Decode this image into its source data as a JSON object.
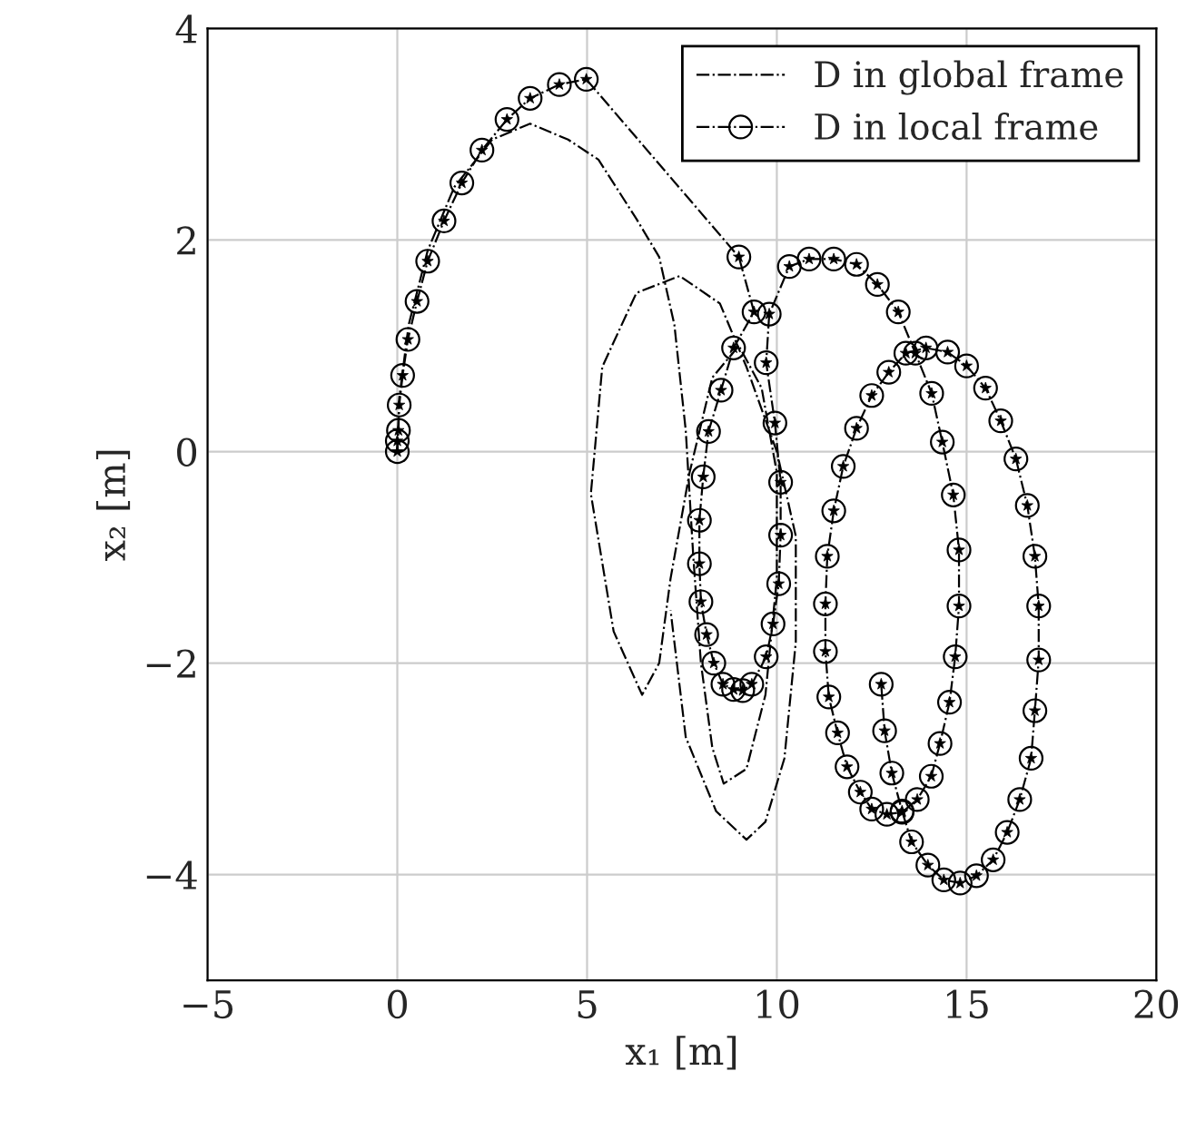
{
  "chart_data": {
    "type": "line",
    "xlabel": "x₁ [m]",
    "ylabel": "x₂ [m]",
    "xlim": [
      -5,
      20
    ],
    "ylim": [
      -5,
      4
    ],
    "xticks": [
      {
        "value": -5,
        "label": "−5"
      },
      0,
      5,
      10,
      15,
      20
    ],
    "yticks": [
      {
        "value": -4,
        "label": "−4"
      },
      {
        "value": -2,
        "label": "−2"
      },
      0,
      2,
      4
    ],
    "grid": true,
    "legend": "top right",
    "series": [
      {
        "name": "D in global frame",
        "color": "#000000",
        "line_style": "dashdot",
        "marker": "none",
        "x": [
          0,
          0.05,
          0.3,
          0.8,
          1.5,
          2.5,
          3.5,
          4.5,
          5.3,
          6.3,
          6.9,
          7.3,
          7.6,
          7.8,
          8.0,
          8.3,
          8.6,
          9.2,
          9.7,
          10.0,
          10.0,
          9.6,
          9.0,
          8.3,
          7.7,
          7.2,
          6.9,
          6.45,
          5.7,
          5.1,
          5.4,
          6.3,
          7.44,
          8.5,
          9.2,
          10.0,
          10.5,
          10.5,
          10.2,
          9.7,
          9.2,
          8.4,
          7.6,
          7.2
        ],
        "values": [
          0,
          0.5,
          1.2,
          1.9,
          2.5,
          2.95,
          3.1,
          2.95,
          2.76,
          2.2,
          1.84,
          1.2,
          0.2,
          -1.0,
          -2.0,
          -2.8,
          -3.14,
          -3.0,
          -2.3,
          -1.2,
          -0.2,
          0.6,
          1.0,
          0.7,
          -0.2,
          -1.2,
          -2.0,
          -2.3,
          -1.7,
          -0.4,
          0.8,
          1.5,
          1.66,
          1.4,
          0.8,
          0.0,
          -0.8,
          -1.8,
          -2.9,
          -3.5,
          -3.67,
          -3.4,
          -2.7,
          -1.5
        ]
      },
      {
        "name": "D in local frame",
        "color": "#000000",
        "line_style": "dashdot",
        "marker": "circle",
        "x": [
          0,
          0,
          0.03,
          0.05,
          0.14,
          0.28,
          0.52,
          0.8,
          1.23,
          1.7,
          2.23,
          2.89,
          3.5,
          4.27,
          4.98,
          9.0,
          9.4,
          8.86,
          8.53,
          8.2,
          8.06,
          7.96,
          7.96,
          8.0,
          8.15,
          8.34,
          8.58,
          8.86,
          9.1,
          9.34,
          9.72,
          9.9,
          10.05,
          10.1,
          10.1,
          9.95,
          9.72,
          9.8,
          10.33,
          10.85,
          11.5,
          12.1,
          12.65,
          13.2,
          13.65,
          14.08,
          14.36,
          14.65,
          14.8,
          14.8,
          14.7,
          14.55,
          14.3,
          14.07,
          13.7,
          13.3,
          12.9,
          12.5,
          12.2,
          11.85,
          11.6,
          11.37,
          11.28,
          11.28,
          11.33,
          11.5,
          11.75,
          12.1,
          12.5,
          12.95,
          13.4,
          13.93,
          14.5,
          15.0,
          15.5,
          15.9,
          16.3,
          16.6,
          16.8,
          16.9,
          16.9,
          16.8,
          16.7,
          16.4,
          16.07,
          15.7,
          15.26,
          14.83,
          14.4,
          13.98,
          13.55,
          13.3,
          13.03,
          12.84,
          12.75
        ],
        "values": [
          0,
          0.1,
          0.2,
          0.44,
          0.72,
          1.06,
          1.42,
          1.8,
          2.18,
          2.54,
          2.85,
          3.14,
          3.34,
          3.47,
          3.52,
          1.84,
          1.32,
          0.98,
          0.58,
          0.19,
          -0.24,
          -0.65,
          -1.06,
          -1.42,
          -1.73,
          -2.0,
          -2.2,
          -2.25,
          -2.26,
          -2.2,
          -1.94,
          -1.63,
          -1.25,
          -0.79,
          -0.29,
          0.27,
          0.84,
          1.3,
          1.75,
          1.82,
          1.82,
          1.77,
          1.58,
          1.32,
          0.93,
          0.55,
          0.09,
          -0.41,
          -0.93,
          -1.46,
          -1.94,
          -2.37,
          -2.76,
          -3.07,
          -3.29,
          -3.41,
          -3.43,
          -3.38,
          -3.22,
          -2.98,
          -2.66,
          -2.32,
          -1.89,
          -1.44,
          -0.99,
          -0.56,
          -0.14,
          0.22,
          0.53,
          0.75,
          0.93,
          0.98,
          0.94,
          0.81,
          0.6,
          0.29,
          -0.07,
          -0.51,
          -0.99,
          -1.46,
          -1.97,
          -2.45,
          -2.9,
          -3.29,
          -3.6,
          -3.86,
          -4.01,
          -4.08,
          -4.05,
          -3.91,
          -3.69,
          -3.4,
          -3.04,
          -2.64,
          -2.2
        ]
      },
      {
        "type": "scatter",
        "color": "#000000",
        "marker": "star",
        "x": [
          0,
          0,
          0.03,
          0.05,
          0.14,
          0.28,
          0.52,
          0.8,
          1.23,
          1.7,
          2.23,
          2.89,
          3.5,
          4.27,
          4.98,
          9.0,
          9.4,
          8.86,
          8.53,
          8.2,
          8.06,
          7.96,
          7.96,
          8.0,
          8.15,
          8.34,
          8.58,
          8.86,
          9.1,
          9.34,
          9.72,
          9.9,
          10.05,
          10.1,
          10.1,
          9.95,
          9.72,
          9.8,
          10.33,
          10.85,
          11.5,
          12.1,
          12.65,
          13.2,
          13.65,
          14.08,
          14.36,
          14.65,
          14.8,
          14.8,
          14.7,
          14.55,
          14.3,
          14.07,
          13.7,
          13.3,
          12.9,
          12.5,
          12.2,
          11.85,
          11.6,
          11.37,
          11.28,
          11.28,
          11.33,
          11.5,
          11.75,
          12.1,
          12.5,
          12.95,
          13.4,
          13.93,
          14.5,
          15.0,
          15.5,
          15.9,
          16.3,
          16.6,
          16.8,
          16.9,
          16.9,
          16.8,
          16.7,
          16.4,
          16.07,
          15.7,
          15.26,
          14.83,
          14.4,
          13.98,
          13.55,
          13.3,
          13.03,
          12.84,
          12.75
        ],
        "values": [
          0,
          0.1,
          0.2,
          0.44,
          0.72,
          1.06,
          1.42,
          1.8,
          2.18,
          2.54,
          2.85,
          3.14,
          3.34,
          3.47,
          3.52,
          1.84,
          1.32,
          0.98,
          0.58,
          0.19,
          -0.24,
          -0.65,
          -1.06,
          -1.42,
          -1.73,
          -2.0,
          -2.2,
          -2.25,
          -2.26,
          -2.2,
          -1.94,
          -1.63,
          -1.25,
          -0.79,
          -0.29,
          0.27,
          0.84,
          1.3,
          1.75,
          1.82,
          1.82,
          1.77,
          1.58,
          1.32,
          0.93,
          0.55,
          0.09,
          -0.41,
          -0.93,
          -1.46,
          -1.94,
          -2.37,
          -2.76,
          -3.07,
          -3.29,
          -3.41,
          -3.43,
          -3.38,
          -3.22,
          -2.98,
          -2.66,
          -2.32,
          -1.89,
          -1.44,
          -0.99,
          -0.56,
          -0.14,
          0.22,
          0.53,
          0.75,
          0.93,
          0.98,
          0.94,
          0.81,
          0.6,
          0.29,
          -0.07,
          -0.51,
          -0.99,
          -1.46,
          -1.97,
          -2.45,
          -2.9,
          -3.29,
          -3.6,
          -3.86,
          -4.01,
          -4.08,
          -4.05,
          -3.91,
          -3.69,
          -3.4,
          -3.04,
          -2.64,
          -2.2
        ]
      }
    ]
  }
}
